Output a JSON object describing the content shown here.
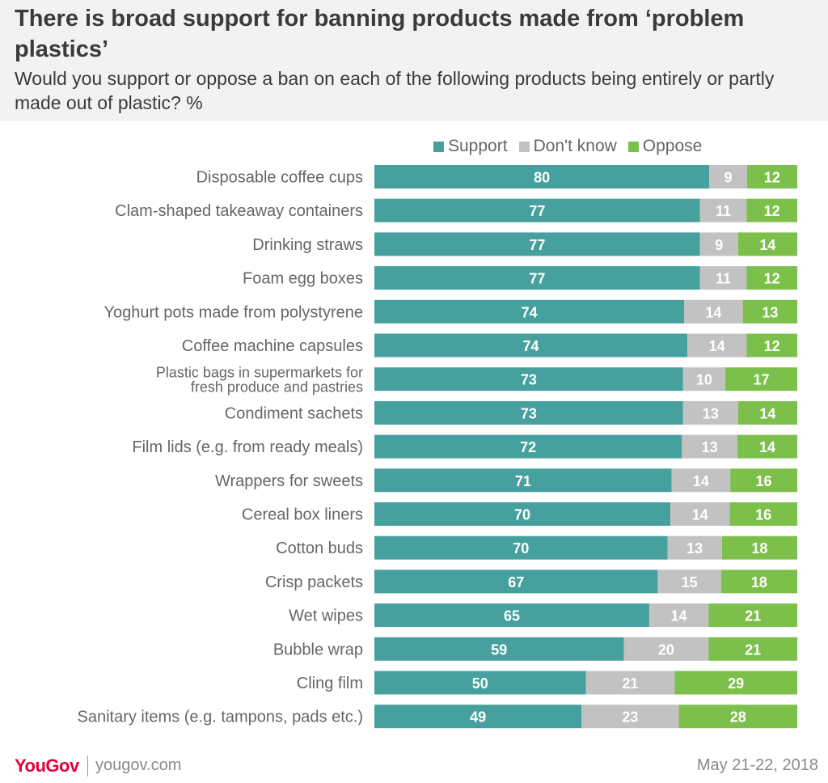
{
  "header": {
    "title": "There is broad support for banning products made from ‘problem plastics’",
    "subtitle": "Would you support or oppose a ban on each of the following products being entirely or partly made out of plastic? %"
  },
  "footer": {
    "logo": "YouGov",
    "website": "yougov.com",
    "date": "May 21-22, 2018"
  },
  "chart_data": {
    "type": "bar",
    "orientation": "horizontal",
    "stacked": true,
    "title": "There is broad support for banning products made from ‘problem plastics’",
    "subtitle": "Would you support or oppose a ban on each of the following products being entirely or partly made out of plastic? %",
    "legend_position": "top",
    "grid": false,
    "categories": [
      "Disposable coffee cups",
      "Clam-shaped takeaway containers",
      "Drinking straws",
      "Foam egg boxes",
      "Yoghurt pots made from polystyrene",
      "Coffee machine capsules",
      "Plastic bags in supermarkets for fresh produce and pastries",
      "Condiment sachets",
      "Film lids (e.g. from ready meals)",
      "Wrappers for sweets",
      "Cereal box liners",
      "Cotton buds",
      "Crisp packets",
      "Wet wipes",
      "Bubble wrap",
      "Cling film",
      "Sanitary items (e.g. tampons, pads etc.)"
    ],
    "series": [
      {
        "name": "Support",
        "color": "#46a19e",
        "values": [
          80,
          77,
          77,
          77,
          74,
          74,
          73,
          73,
          72,
          71,
          70,
          70,
          67,
          65,
          59,
          50,
          49
        ]
      },
      {
        "name": "Don't know",
        "color": "#c2c2c2",
        "values": [
          9,
          11,
          9,
          11,
          14,
          14,
          10,
          13,
          13,
          14,
          14,
          13,
          15,
          14,
          20,
          21,
          23
        ]
      },
      {
        "name": "Oppose",
        "color": "#7cc04b",
        "values": [
          12,
          12,
          14,
          12,
          13,
          12,
          17,
          14,
          14,
          16,
          16,
          18,
          18,
          21,
          21,
          29,
          28
        ]
      }
    ]
  }
}
